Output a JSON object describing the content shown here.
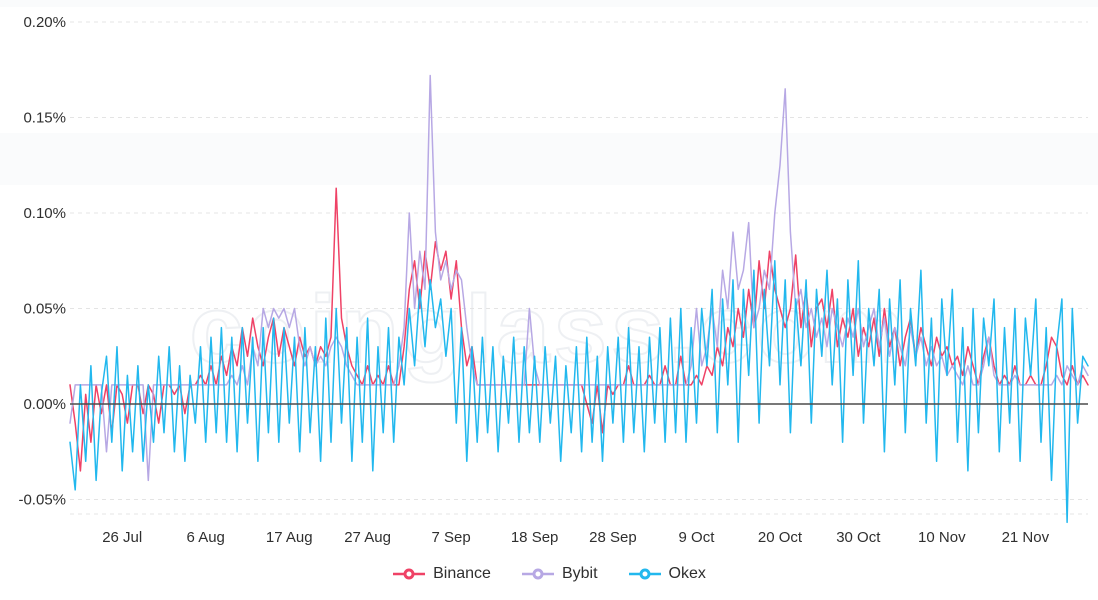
{
  "watermark": "coinglass.com",
  "chart_data": {
    "type": "line",
    "title": "",
    "xlabel": "",
    "ylabel": "",
    "ylim": [
      -0.05,
      0.2
    ],
    "grid": "horizontal-dashed",
    "zero_line": true,
    "legend_position": "bottom-center",
    "unit": "%",
    "y_ticks": [
      {
        "value": 0.2,
        "label": "0.20%"
      },
      {
        "value": 0.15,
        "label": "0.15%"
      },
      {
        "value": 0.1,
        "label": "0.10%"
      },
      {
        "value": 0.05,
        "label": "0.05%"
      },
      {
        "value": 0.0,
        "label": "0.00%"
      },
      {
        "value": -0.05,
        "label": "-0.05%"
      }
    ],
    "x_ticks": [
      {
        "index": 10,
        "label": "26 Jul"
      },
      {
        "index": 26,
        "label": "6 Aug"
      },
      {
        "index": 42,
        "label": "17 Aug"
      },
      {
        "index": 57,
        "label": "27 Aug"
      },
      {
        "index": 73,
        "label": "7 Sep"
      },
      {
        "index": 89,
        "label": "18 Sep"
      },
      {
        "index": 104,
        "label": "28 Sep"
      },
      {
        "index": 120,
        "label": "9 Oct"
      },
      {
        "index": 136,
        "label": "20 Oct"
      },
      {
        "index": 151,
        "label": "30 Oct"
      },
      {
        "index": 167,
        "label": "10 Nov"
      },
      {
        "index": 183,
        "label": "21 Nov"
      }
    ],
    "series": [
      {
        "name": "Binance",
        "color": "#ef4266",
        "values": [
          0.01,
          -0.01,
          -0.035,
          0.005,
          -0.02,
          0.01,
          -0.005,
          0.01,
          -0.015,
          0.01,
          0.005,
          -0.01,
          0.01,
          0.01,
          -0.005,
          0.01,
          0.005,
          -0.01,
          0.01,
          0.01,
          0.005,
          0.01,
          -0.005,
          0.01,
          0.01,
          0.015,
          0.01,
          0.02,
          0.01,
          0.025,
          0.015,
          0.03,
          0.02,
          0.04,
          0.025,
          0.045,
          0.03,
          0.02,
          0.035,
          0.045,
          0.025,
          0.04,
          0.03,
          0.02,
          0.035,
          0.025,
          0.03,
          0.02,
          0.03,
          0.025,
          0.035,
          0.113,
          0.045,
          0.03,
          0.02,
          0.015,
          0.01,
          0.02,
          0.01,
          0.015,
          0.01,
          0.02,
          0.01,
          0.01,
          0.03,
          0.06,
          0.075,
          0.05,
          0.08,
          0.06,
          0.085,
          0.07,
          0.08,
          0.055,
          0.075,
          0.04,
          0.02,
          0.03,
          0.01,
          0.01,
          0.01,
          0.01,
          0.01,
          0.01,
          0.01,
          0.01,
          0.01,
          0.01,
          0.01,
          0.01,
          0.01,
          0.01,
          0.01,
          0.01,
          0.01,
          0.01,
          0.01,
          0.01,
          0.01,
          0.0,
          -0.01,
          0.01,
          -0.015,
          0.01,
          0.005,
          0.01,
          0.01,
          0.02,
          0.01,
          0.01,
          0.01,
          0.015,
          0.01,
          0.01,
          0.02,
          0.01,
          0.01,
          0.025,
          0.01,
          0.01,
          0.015,
          0.01,
          0.02,
          0.015,
          0.03,
          0.02,
          0.04,
          0.03,
          0.05,
          0.035,
          0.06,
          0.04,
          0.075,
          0.05,
          0.08,
          0.06,
          0.05,
          0.04,
          0.05,
          0.078,
          0.04,
          0.06,
          0.03,
          0.05,
          0.055,
          0.04,
          0.06,
          0.03,
          0.045,
          0.035,
          0.05,
          0.025,
          0.04,
          0.03,
          0.045,
          0.025,
          0.05,
          0.03,
          0.04,
          0.02,
          0.035,
          0.045,
          0.025,
          0.04,
          0.03,
          0.02,
          0.035,
          0.025,
          0.03,
          0.02,
          0.025,
          0.015,
          0.03,
          0.02,
          0.01,
          0.025,
          0.035,
          0.02,
          0.01,
          0.015,
          0.01,
          0.02,
          0.01,
          0.01,
          0.015,
          0.01,
          0.01,
          0.02,
          0.035,
          0.03,
          0.015,
          0.01,
          0.02,
          0.01,
          0.015,
          0.01
        ]
      },
      {
        "name": "Bybit",
        "color": "#b7a8e4",
        "values": [
          -0.01,
          0.01,
          0.01,
          0.01,
          0.01,
          0.01,
          0.01,
          -0.025,
          0.01,
          0.01,
          0.01,
          0.01,
          0.01,
          0.01,
          0.01,
          -0.04,
          0.01,
          0.01,
          0.01,
          0.01,
          0.01,
          0.01,
          0.01,
          0.01,
          0.01,
          0.01,
          0.01,
          0.01,
          0.01,
          0.01,
          0.01,
          0.015,
          0.01,
          0.02,
          0.01,
          0.03,
          0.02,
          0.05,
          0.04,
          0.05,
          0.045,
          0.05,
          0.04,
          0.05,
          0.03,
          0.02,
          0.03,
          0.02,
          0.025,
          0.02,
          0.03,
          0.035,
          0.03,
          0.02,
          0.015,
          0.01,
          0.01,
          0.01,
          0.01,
          0.01,
          0.01,
          0.01,
          0.01,
          0.02,
          0.04,
          0.1,
          0.05,
          0.08,
          0.06,
          0.172,
          0.09,
          0.065,
          0.075,
          0.06,
          0.07,
          0.065,
          0.04,
          0.02,
          0.01,
          0.01,
          0.01,
          0.01,
          0.01,
          0.01,
          0.01,
          0.01,
          0.01,
          0.01,
          0.05,
          0.02,
          0.01,
          0.01,
          0.01,
          0.01,
          0.01,
          0.01,
          0.01,
          0.01,
          0.01,
          0.01,
          0.01,
          0.01,
          0.01,
          0.01,
          0.01,
          0.01,
          0.01,
          0.01,
          0.01,
          0.01,
          0.01,
          0.01,
          0.01,
          0.01,
          0.01,
          0.01,
          0.01,
          0.01,
          0.01,
          0.02,
          0.05,
          0.02,
          0.03,
          0.05,
          0.03,
          0.07,
          0.05,
          0.09,
          0.06,
          0.07,
          0.095,
          0.04,
          0.05,
          0.07,
          0.06,
          0.1,
          0.125,
          0.165,
          0.09,
          0.05,
          0.06,
          0.04,
          0.05,
          0.035,
          0.045,
          0.03,
          0.05,
          0.04,
          0.03,
          0.045,
          0.035,
          0.05,
          0.03,
          0.04,
          0.05,
          0.03,
          0.045,
          0.025,
          0.04,
          0.03,
          0.02,
          0.04,
          0.025,
          0.035,
          0.02,
          0.03,
          0.02,
          0.025,
          0.015,
          0.02,
          0.015,
          0.01,
          0.02,
          0.01,
          0.01,
          0.02,
          0.035,
          0.015,
          0.01,
          0.01,
          0.01,
          0.015,
          0.01,
          0.01,
          0.01,
          0.01,
          0.01,
          0.01,
          0.01,
          0.015,
          0.01,
          0.02,
          0.015,
          0.01,
          0.02,
          0.015
        ]
      },
      {
        "name": "Okex",
        "color": "#22b8ee",
        "values": [
          -0.02,
          -0.045,
          0.01,
          -0.03,
          0.02,
          -0.04,
          0.005,
          0.025,
          -0.02,
          0.03,
          -0.035,
          0.015,
          -0.025,
          0.02,
          -0.03,
          0.01,
          -0.02,
          0.025,
          -0.015,
          0.03,
          -0.025,
          0.02,
          -0.03,
          0.015,
          -0.01,
          0.03,
          -0.02,
          0.035,
          -0.015,
          0.04,
          -0.02,
          0.035,
          -0.025,
          0.04,
          -0.01,
          0.035,
          -0.03,
          0.04,
          -0.015,
          0.045,
          -0.02,
          0.04,
          -0.01,
          0.035,
          -0.025,
          0.04,
          -0.015,
          0.03,
          -0.03,
          0.045,
          -0.02,
          0.05,
          -0.01,
          0.04,
          -0.03,
          0.035,
          -0.02,
          0.045,
          -0.035,
          0.03,
          -0.015,
          0.04,
          -0.02,
          0.035,
          0.01,
          0.05,
          0.02,
          0.06,
          0.03,
          0.065,
          0.04,
          0.055,
          0.025,
          0.05,
          -0.01,
          0.04,
          -0.03,
          0.03,
          -0.02,
          0.035,
          -0.015,
          0.03,
          -0.025,
          0.025,
          -0.01,
          0.035,
          -0.02,
          0.03,
          -0.015,
          0.025,
          -0.02,
          0.03,
          -0.01,
          0.025,
          -0.03,
          0.02,
          -0.015,
          0.03,
          -0.025,
          0.035,
          -0.02,
          0.025,
          -0.03,
          0.03,
          -0.01,
          0.035,
          -0.02,
          0.04,
          -0.015,
          0.03,
          -0.025,
          0.035,
          -0.01,
          0.04,
          -0.02,
          0.045,
          -0.015,
          0.05,
          -0.02,
          0.04,
          -0.01,
          0.05,
          0.02,
          0.06,
          -0.015,
          0.055,
          0.01,
          0.065,
          -0.02,
          0.06,
          0.015,
          0.07,
          -0.01,
          0.06,
          0.02,
          0.075,
          0.01,
          0.065,
          -0.015,
          0.055,
          0.02,
          0.065,
          -0.01,
          0.06,
          0.025,
          0.07,
          0.01,
          0.055,
          -0.02,
          0.065,
          0.015,
          0.075,
          -0.01,
          0.05,
          0.02,
          0.06,
          -0.025,
          0.055,
          0.01,
          0.065,
          -0.015,
          0.05,
          0.02,
          0.07,
          -0.01,
          0.045,
          -0.03,
          0.055,
          0.015,
          0.06,
          -0.02,
          0.04,
          -0.035,
          0.05,
          -0.015,
          0.045,
          0.02,
          0.055,
          -0.025,
          0.04,
          -0.01,
          0.05,
          -0.03,
          0.045,
          0.015,
          0.055,
          -0.02,
          0.04,
          -0.04,
          0.03,
          0.055,
          -0.062,
          0.05,
          -0.01,
          0.025,
          0.02
        ]
      }
    ]
  },
  "legend": {
    "items": [
      {
        "label": "Binance",
        "color": "#ef4266"
      },
      {
        "label": "Bybit",
        "color": "#b7a8e4"
      },
      {
        "label": "Okex",
        "color": "#22b8ee"
      }
    ]
  },
  "colors": {
    "grid": "#e4e4e4",
    "zero_line": "#4c4c4c",
    "text": "#2f2f2f",
    "background": "#ffffff",
    "watermark_stroke": "#eef0f3"
  }
}
